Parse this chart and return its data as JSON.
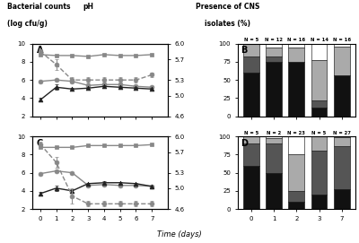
{
  "panel_A": {
    "label": "A",
    "days": [
      0,
      1,
      2,
      3,
      4,
      5,
      6,
      7
    ],
    "square_solid": [
      8.8,
      8.7,
      8.7,
      8.6,
      8.8,
      8.7,
      8.7,
      8.8
    ],
    "square_solid_err": [
      0.1,
      0.1,
      0.05,
      0.1,
      0.05,
      0.05,
      0.05,
      0.08
    ],
    "circle_solid": [
      5.85,
      6.0,
      5.85,
      5.4,
      5.5,
      5.5,
      5.3,
      5.2
    ],
    "circle_solid_err": [
      0.1,
      0.1,
      0.1,
      0.1,
      0.1,
      0.1,
      0.1,
      0.1
    ],
    "triangle_solid": [
      3.8,
      5.2,
      5.0,
      5.1,
      5.3,
      5.2,
      5.1,
      5.0
    ],
    "triangle_solid_err": [
      0.2,
      0.3,
      0.15,
      0.1,
      0.15,
      0.1,
      0.1,
      0.1
    ],
    "ph_dashed": [
      5.85,
      5.6,
      5.3,
      5.3,
      5.3,
      5.3,
      5.3,
      5.4
    ],
    "ph_dashed_err": [
      0.05,
      0.1,
      0.05,
      0.05,
      0.05,
      0.05,
      0.05,
      0.05
    ]
  },
  "panel_C": {
    "label": "C",
    "days": [
      0,
      1,
      2,
      3,
      4,
      5,
      6,
      7
    ],
    "square_solid": [
      8.8,
      8.8,
      8.8,
      9.0,
      9.0,
      9.0,
      9.0,
      9.1
    ],
    "square_solid_err": [
      0.1,
      0.1,
      0.05,
      0.1,
      0.05,
      0.05,
      0.05,
      0.08
    ],
    "circle_solid": [
      5.9,
      6.2,
      6.0,
      4.6,
      4.7,
      4.6,
      4.6,
      4.5
    ],
    "circle_solid_err": [
      0.1,
      0.1,
      0.1,
      0.1,
      0.1,
      0.1,
      0.1,
      0.1
    ],
    "triangle_solid": [
      3.7,
      4.3,
      4.0,
      4.8,
      4.9,
      4.9,
      4.8,
      4.5
    ],
    "triangle_solid_err": [
      0.2,
      0.3,
      0.15,
      0.1,
      0.15,
      0.1,
      0.1,
      0.1
    ],
    "ph_dashed": [
      5.85,
      5.5,
      4.85,
      4.7,
      4.7,
      4.7,
      4.7,
      4.7
    ],
    "ph_dashed_err": [
      0.05,
      0.1,
      0.15,
      0.05,
      0.05,
      0.05,
      0.05,
      0.05
    ]
  },
  "panel_B": {
    "label": "B",
    "n_labels": [
      "N = 5",
      "N = 12",
      "N = 16",
      "N = 14",
      "N = 16"
    ],
    "days": [
      "0",
      "1",
      "2",
      "3",
      "7"
    ],
    "black": [
      60,
      75,
      75,
      12,
      56
    ],
    "dark_gray": [
      22,
      8,
      0,
      10,
      0
    ],
    "light_gray": [
      18,
      12,
      20,
      55,
      40
    ],
    "white_bar": [
      0,
      5,
      5,
      23,
      4
    ]
  },
  "panel_D": {
    "label": "D",
    "n_labels": [
      "N = 5",
      "N = 2",
      "N = 23",
      "N = 5",
      "N = 27"
    ],
    "days": [
      "0",
      "1",
      "2",
      "3",
      "7"
    ],
    "black": [
      60,
      50,
      10,
      20,
      27
    ],
    "dark_gray": [
      30,
      40,
      15,
      60,
      60
    ],
    "light_gray": [
      10,
      8,
      50,
      20,
      12
    ],
    "white_bar": [
      0,
      2,
      25,
      0,
      1
    ]
  },
  "left_ylim": [
    2,
    10
  ],
  "left_yticks": [
    2,
    4,
    6,
    8,
    10
  ],
  "right_ylim": [
    4.6,
    6.0
  ],
  "right_yticks": [
    4.6,
    5.0,
    5.3,
    5.7,
    6.0
  ],
  "right_yticklabels": [
    "4.6",
    "5.0",
    "5.3",
    "5.7",
    "6.0"
  ],
  "bar_ylim": [
    0,
    100
  ],
  "bar_yticks": [
    0,
    25,
    50,
    75,
    100
  ],
  "line_gray": "#888888",
  "line_dark": "#222222",
  "bar_black": "#111111",
  "bar_darkgray": "#555555",
  "bar_lightgray": "#aaaaaa",
  "bar_white": "#ffffff"
}
